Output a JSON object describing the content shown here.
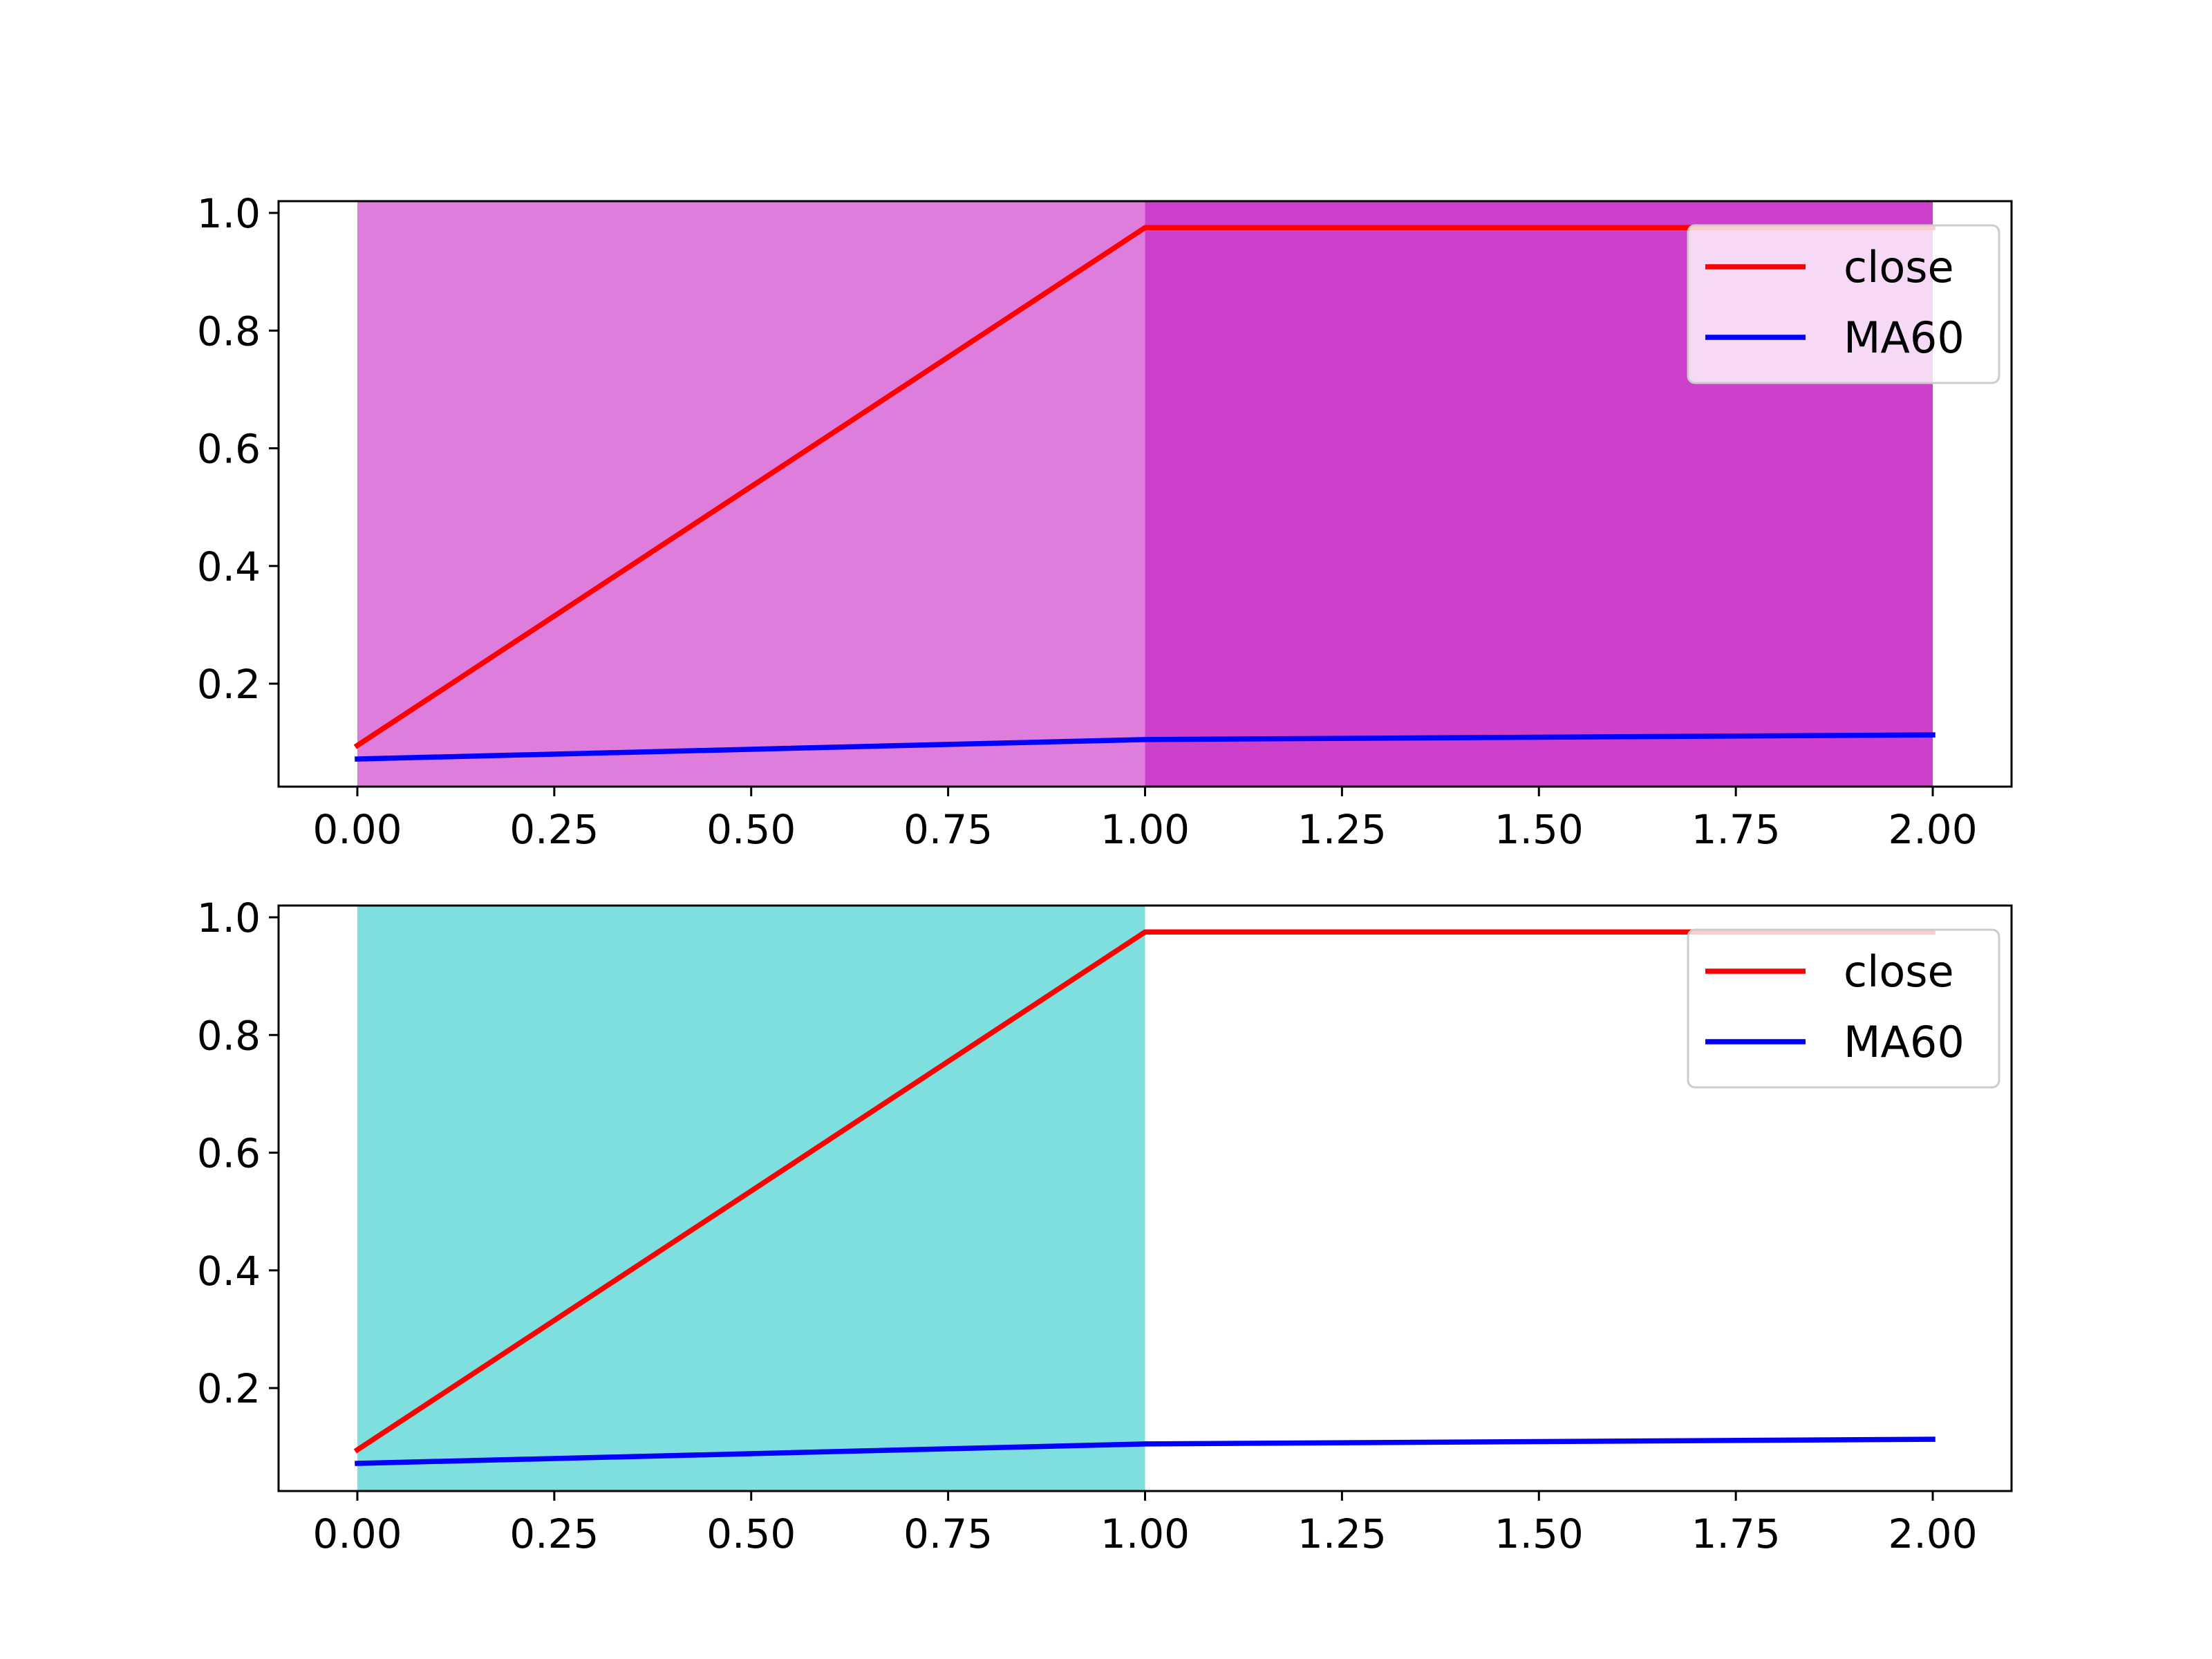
{
  "chart_data": [
    {
      "type": "line",
      "xlim": [
        -0.1,
        2.1
      ],
      "ylim": [
        0.025,
        1.02
      ],
      "xticks": [
        "0.00",
        "0.25",
        "0.50",
        "0.75",
        "1.00",
        "1.25",
        "1.50",
        "1.75",
        "2.00"
      ],
      "xtick_values": [
        0,
        0.25,
        0.5,
        0.75,
        1.0,
        1.25,
        1.5,
        1.75,
        2.0
      ],
      "yticks": [
        "0.2",
        "0.4",
        "0.6",
        "0.8",
        "1.0"
      ],
      "ytick_values": [
        0.2,
        0.4,
        0.6,
        0.8,
        1.0
      ],
      "bands": [
        {
          "x_from": 0,
          "x_to": 1,
          "color": "#df7ddd"
        },
        {
          "x_from": 1,
          "x_to": 2,
          "color": "#cc40cc"
        }
      ],
      "series": [
        {
          "name": "close",
          "color": "#ff0000",
          "x": [
            0,
            1,
            2
          ],
          "y": [
            0.095,
            0.975,
            0.975
          ]
        },
        {
          "name": "MA60",
          "color": "#0000ff",
          "x": [
            0,
            1,
            2
          ],
          "y": [
            0.072,
            0.105,
            0.113
          ]
        }
      ],
      "legend": {
        "placement": "upper right"
      }
    },
    {
      "type": "line",
      "xlim": [
        -0.1,
        2.1
      ],
      "ylim": [
        0.025,
        1.02
      ],
      "xticks": [
        "0.00",
        "0.25",
        "0.50",
        "0.75",
        "1.00",
        "1.25",
        "1.50",
        "1.75",
        "2.00"
      ],
      "xtick_values": [
        0,
        0.25,
        0.5,
        0.75,
        1.0,
        1.25,
        1.5,
        1.75,
        2.0
      ],
      "yticks": [
        "0.2",
        "0.4",
        "0.6",
        "0.8",
        "1.0"
      ],
      "ytick_values": [
        0.2,
        0.4,
        0.6,
        0.8,
        1.0
      ],
      "bands": [
        {
          "x_from": 0,
          "x_to": 1,
          "color": "#7fdfdf"
        }
      ],
      "series": [
        {
          "name": "close",
          "color": "#ff0000",
          "x": [
            0,
            1,
            2
          ],
          "y": [
            0.095,
            0.975,
            0.975
          ]
        },
        {
          "name": "MA60",
          "color": "#0000ff",
          "x": [
            0,
            1,
            2
          ],
          "y": [
            0.072,
            0.105,
            0.113
          ]
        }
      ],
      "legend": {
        "placement": "upper right"
      }
    }
  ]
}
